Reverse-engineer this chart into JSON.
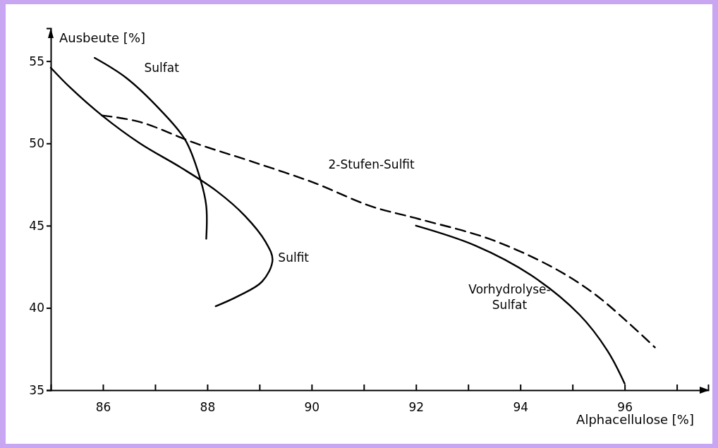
{
  "chart_data": {
    "type": "line",
    "xlabel": "Alphacellulose [%]",
    "ylabel": "Ausbeute [%]",
    "xlim": [
      85,
      97.6
    ],
    "ylim": [
      35,
      57
    ],
    "xticks": [
      86,
      {
        "value": 87,
        "label": null
      },
      88,
      {
        "value": 89,
        "label": null
      },
      90,
      {
        "value": 91,
        "label": null
      },
      92,
      {
        "value": 93,
        "label": null
      },
      94,
      {
        "value": 95,
        "label": null
      },
      96,
      {
        "value": 97,
        "label": null
      }
    ],
    "yticks": [
      35,
      40,
      45,
      50,
      55
    ],
    "grid": false,
    "legend": false,
    "marker": "none",
    "series": [
      {
        "name": "Sulfat",
        "color": "#000000",
        "line_style": "solid",
        "x": [
          85.84,
          86.44,
          87.11,
          87.58,
          87.85,
          87.98,
          87.98
        ],
        "values": [
          55.2,
          54.0,
          52.0,
          50.2,
          48.0,
          46.2,
          44.2
        ]
      },
      {
        "name": "Sulfit",
        "color": "#000000",
        "line_style": "solid",
        "x": [
          85.0,
          85.37,
          85.98,
          86.71,
          87.51,
          88.18,
          88.72,
          89.12,
          89.25,
          89.05,
          88.58,
          88.16
        ],
        "values": [
          54.6,
          53.4,
          51.7,
          50.0,
          48.5,
          47.1,
          45.6,
          44.0,
          42.9,
          41.6,
          40.7,
          40.1
        ]
      },
      {
        "name": "2-Stufen-Sulfit",
        "color": "#000000",
        "line_style": "dashed",
        "x": [
          85.98,
          86.71,
          87.78,
          88.85,
          90.05,
          91.12,
          92.06,
          93.4,
          94.6,
          95.4,
          96.07,
          96.58
        ],
        "values": [
          51.7,
          51.3,
          50.0,
          48.9,
          47.6,
          46.2,
          45.4,
          44.2,
          42.5,
          40.9,
          39.1,
          37.6
        ]
      },
      {
        "name": "Vorhydrolyse-Sulfat",
        "color": "#000000",
        "line_style": "solid",
        "x": [
          92.0,
          93.13,
          94.2,
          95.13,
          95.67,
          96.0
        ],
        "values": [
          45.0,
          43.8,
          42.0,
          39.6,
          37.4,
          35.4
        ]
      }
    ]
  }
}
